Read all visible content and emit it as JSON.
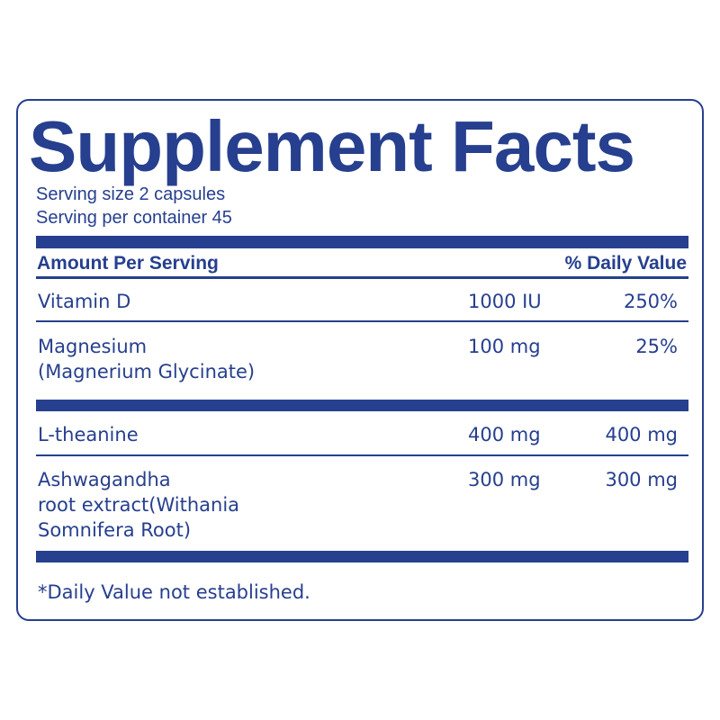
{
  "title": "Supplement Facts",
  "serving_size": "Serving size 2 capsules",
  "servings_per_container": "Serving per container 45",
  "header": {
    "amount": "Amount Per Serving",
    "daily_value": "% Daily Value"
  },
  "rows": [
    {
      "name": [
        "Vitamin D"
      ],
      "amount": "1000 IU",
      "dv": "250%"
    },
    {
      "name": [
        "Magnesium",
        "(Magnerium Glycinate)"
      ],
      "amount": "100 mg",
      "dv": "25%"
    },
    {
      "name": [
        "L-theanine"
      ],
      "amount": "400 mg",
      "dv": "400 mg"
    },
    {
      "name": [
        "Ashwagandha",
        "root extract(Withania",
        "Somnifera Root)"
      ],
      "amount": "300 mg",
      "dv": "300 mg"
    }
  ],
  "footnote": "*Daily Value not established.",
  "colors": {
    "primary": "#263f8e"
  }
}
